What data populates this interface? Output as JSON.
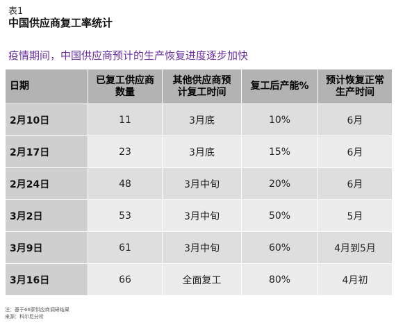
{
  "label": "表1",
  "title": "中国供应商复工率统计",
  "subtitle": "疫情期间，中国供应商预计的生产恢复进度逐步加快",
  "table": {
    "headers": [
      "日期",
      "已复工供应商\n数量",
      "其他供应商预\n计复工时间",
      "复工后产能%",
      "预计恢复正常\n生产时间"
    ],
    "rows": [
      [
        "2月10日",
        "11",
        "3月底",
        "10%",
        "6月"
      ],
      [
        "2月17日",
        "23",
        "3月底",
        "15%",
        "6月"
      ],
      [
        "2月24日",
        "48",
        "3月中旬",
        "20%",
        "6月"
      ],
      [
        "3月2日",
        "53",
        "3月中旬",
        "50%",
        "5月"
      ],
      [
        "3月9日",
        "61",
        "3月中旬",
        "60%",
        "4月到5月"
      ],
      [
        "3月16日",
        "66",
        "全面复工",
        "80%",
        "4月初"
      ]
    ]
  },
  "notes": {
    "note": "注：基于66家供应商调研结果",
    "source": "来源：科尔尼分析"
  }
}
